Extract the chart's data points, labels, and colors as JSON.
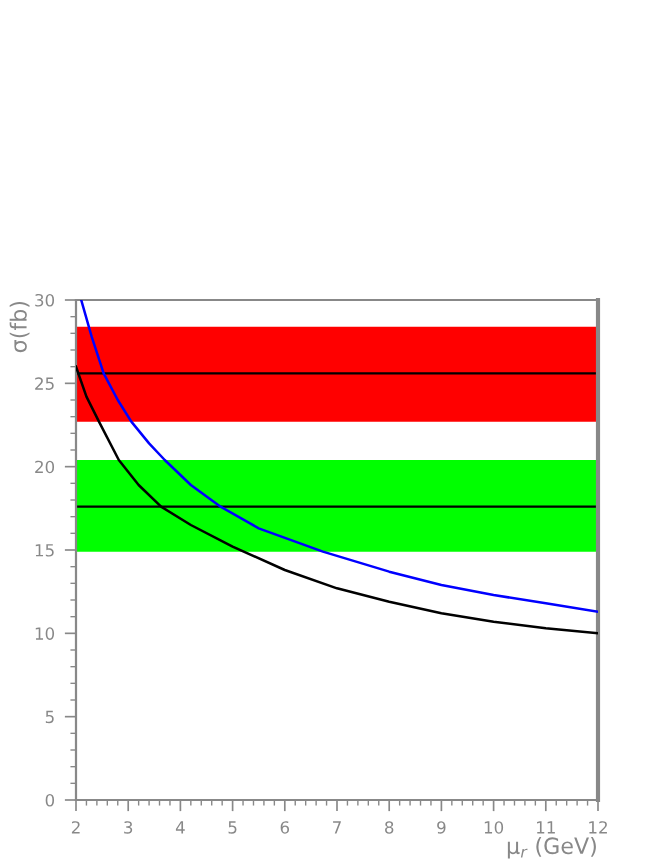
{
  "chart_data": {
    "type": "line",
    "xlabel": "μ$_{r}$ (GeV)",
    "ylabel": "σ(fb)",
    "xlim": [
      2,
      12
    ],
    "ylim": [
      0,
      30
    ],
    "xticks": [
      2,
      3,
      4,
      5,
      6,
      7,
      8,
      9,
      10,
      11,
      12
    ],
    "yticks": [
      0,
      5,
      10,
      15,
      20,
      25,
      30
    ],
    "series": [
      {
        "color": "#0000ff",
        "x": [
          2.1,
          2.3,
          2.53,
          2.8,
          3.06,
          3.4,
          3.7,
          4.2,
          4.77,
          5.5,
          6.73,
          8,
          9,
          10,
          11,
          12
        ],
        "values": [
          30,
          27.8,
          25.6,
          24.0,
          22.7,
          21.4,
          20.4,
          18.9,
          17.6,
          16.3,
          14.9,
          13.7,
          12.9,
          12.3,
          11.8,
          11.3
        ]
      },
      {
        "color": "#000000",
        "x": [
          2,
          2.2,
          2.44,
          2.82,
          3.2,
          3.63,
          4.2,
          5,
          6,
          7,
          8,
          9,
          10,
          11,
          12
        ],
        "values": [
          26,
          24.2,
          22.7,
          20.4,
          18.9,
          17.6,
          16.5,
          15.2,
          13.8,
          12.7,
          11.9,
          11.2,
          10.7,
          10.3,
          10.0
        ]
      }
    ],
    "bands": [
      {
        "axis": "y",
        "from": 22.7,
        "to": 28.4,
        "color": "#ff0000"
      },
      {
        "axis": "y",
        "from": 14.9,
        "to": 20.4,
        "color": "#00ff00"
      }
    ],
    "ref_lines": [
      {
        "axis": "y",
        "value": 25.6,
        "color": "#000000"
      },
      {
        "axis": "y",
        "value": 17.6,
        "color": "#000000"
      }
    ],
    "grid": false,
    "legend": false
  }
}
